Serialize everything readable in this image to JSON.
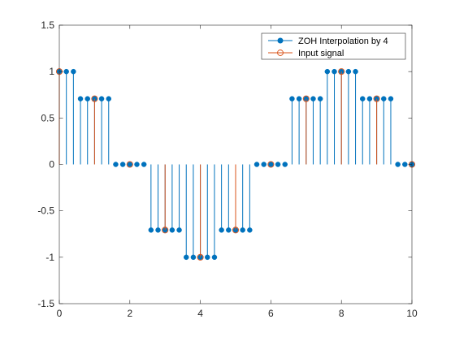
{
  "chart_data": {
    "type": "stem",
    "title": "",
    "xlabel": "",
    "ylabel": "",
    "xlim": [
      0,
      10
    ],
    "ylim": [
      -1.5,
      1.5
    ],
    "xticks": [
      "0",
      "2",
      "4",
      "6",
      "8",
      "10"
    ],
    "yticks": [
      "1.5",
      "1",
      "0.5",
      "0",
      "-0.5",
      "-1",
      "-1.5"
    ],
    "grid": false,
    "legend_position": "top-right",
    "series": [
      {
        "name": "ZOH Interpolation by 4",
        "color": "#0072BD",
        "marker": "filled-circle",
        "x": [
          0,
          0.2,
          0.4,
          0.6,
          0.8,
          1,
          1.2,
          1.4,
          1.6,
          1.8,
          2,
          2.2,
          2.4,
          2.6,
          2.8,
          3,
          3.2,
          3.4,
          3.6,
          3.8,
          4,
          4.2,
          4.4,
          4.6,
          4.8,
          5,
          5.2,
          5.4,
          5.6,
          5.8,
          6,
          6.2,
          6.4,
          6.6,
          6.8,
          7,
          7.2,
          7.4,
          7.6,
          7.8,
          8,
          8.2,
          8.4,
          8.6,
          8.8,
          9,
          9.2,
          9.4,
          9.6,
          9.8,
          10
        ],
        "y": [
          1,
          1,
          1,
          0.7071,
          0.7071,
          0.7071,
          0.7071,
          0.7071,
          0,
          0,
          0,
          0,
          0,
          -0.7071,
          -0.7071,
          -0.7071,
          -0.7071,
          -0.7071,
          -1,
          -1,
          -1,
          -1,
          -1,
          -0.7071,
          -0.7071,
          -0.7071,
          -0.7071,
          -0.7071,
          0,
          0,
          0,
          0,
          0,
          0.7071,
          0.7071,
          0.7071,
          0.7071,
          0.7071,
          1,
          1,
          1,
          1,
          1,
          0.7071,
          0.7071,
          0.7071,
          0.7071,
          0.7071,
          0,
          0,
          0
        ]
      },
      {
        "name": "Input signal",
        "color": "#D95319",
        "marker": "open-circle",
        "x": [
          0,
          1,
          2,
          3,
          4,
          5,
          6,
          7,
          8,
          9,
          10
        ],
        "y": [
          1,
          0.7071,
          0,
          -0.7071,
          -1,
          -0.7071,
          0,
          0.7071,
          1,
          0.7071,
          0
        ]
      }
    ]
  }
}
